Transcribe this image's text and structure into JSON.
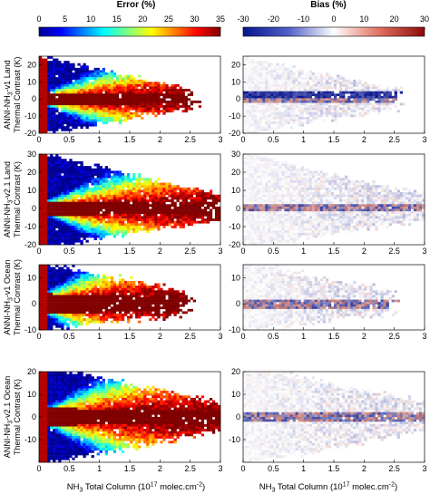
{
  "chart_data": {
    "type": "heatmap",
    "colorbars": [
      {
        "id": "error",
        "title": "Error (%)",
        "range": [
          0,
          35
        ],
        "ticks": [
          "0",
          "5",
          "10",
          "15",
          "20",
          "25",
          "30",
          "35"
        ],
        "colormap": "jet"
      },
      {
        "id": "bias",
        "title": "Bias (%)",
        "range": [
          -30,
          30
        ],
        "ticks": [
          "-30",
          "-20",
          "-10",
          "0",
          "10",
          "20",
          "30"
        ],
        "colormap": "blue-white-red"
      }
    ],
    "x_axis": {
      "label_main": "NH",
      "label_sub": "3",
      "label_rest": " Total Column (10",
      "label_sup": "17",
      "label_unit": " molec.cm",
      "label_sup2": "-2",
      "label_end": ")",
      "range": [
        0,
        3
      ],
      "ticks": [
        "0",
        "0.5",
        "1",
        "1.5",
        "2",
        "2.5",
        "3"
      ]
    },
    "y_axis_label": "Thermal Contrast (K)",
    "rows": [
      {
        "id": "nn1-land",
        "label_pre": "ANNI-NH",
        "label_sub": "3",
        "label_post": "-v1 Land",
        "ylim": [
          -20,
          25
        ],
        "yticks": [
          "-20",
          "-10",
          "0",
          "10",
          "20"
        ],
        "ytick_values": [
          -20,
          -10,
          0,
          10,
          20
        ],
        "max_tc": 22,
        "min_tc": -19,
        "xmax": 2.4
      },
      {
        "id": "nn21-land",
        "label_pre": "ANNI-NH",
        "label_sub": "3",
        "label_post": "-v2.1 Land",
        "ylim": [
          -20,
          30
        ],
        "yticks": [
          "-20",
          "-10",
          "0",
          "10",
          "20",
          "30"
        ],
        "ytick_values": [
          -20,
          -10,
          0,
          10,
          20,
          30
        ],
        "max_tc": 28,
        "min_tc": -20,
        "xmax": 3.0
      },
      {
        "id": "nn1-ocean",
        "label_pre": "ANNI-NH",
        "label_sub": "3",
        "label_post": "-v1 Ocean",
        "ylim": [
          -10,
          15
        ],
        "yticks": [
          "-10",
          "0",
          "10"
        ],
        "ytick_values": [
          -10,
          0,
          10
        ],
        "max_tc": 13,
        "min_tc": -8,
        "xmax": 2.3
      },
      {
        "id": "nn21-ocean",
        "label_pre": "ANNI-NH",
        "label_sub": "3",
        "label_post": "-v2.1 Ocean",
        "ylim": [
          -20,
          20
        ],
        "yticks": [
          "-10",
          "0",
          "10",
          "20"
        ],
        "ytick_values": [
          -10,
          0,
          10,
          20
        ],
        "max_tc": 20,
        "min_tc": -19,
        "xmax": 3.0
      }
    ]
  }
}
